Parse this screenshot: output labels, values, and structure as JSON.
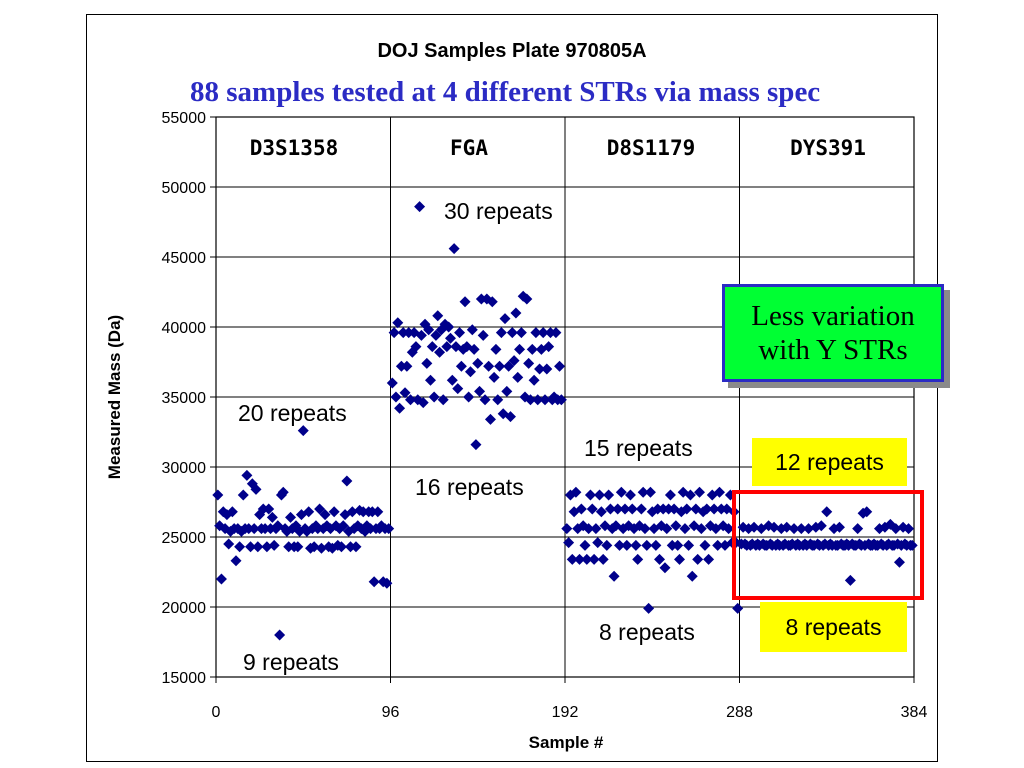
{
  "chart_data": {
    "type": "scatter",
    "title": "DOJ Samples Plate 970805A",
    "subtitle": "88 samples tested at 4 different STRs via mass spec",
    "xlabel": "Sample #",
    "ylabel": "Measured Mass (Da)",
    "xlim": [
      0,
      384
    ],
    "ylim": [
      15000,
      55000
    ],
    "x_ticks": [
      "0",
      "96",
      "192",
      "288",
      "384"
    ],
    "y_ticks": [
      "15000",
      "20000",
      "25000",
      "30000",
      "35000",
      "40000",
      "45000",
      "50000",
      "55000"
    ],
    "grid": true,
    "marker_color": "#00008b",
    "loci": [
      "D3S1358",
      "FGA",
      "D8S1179",
      "DYS391"
    ],
    "annotations": [
      "30 repeats",
      "20 repeats",
      "9 repeats",
      "16 repeats",
      "15 repeats",
      "8 repeats",
      "12 repeats",
      "8 repeats"
    ],
    "callout": "Less variation with Y STRs",
    "series": [
      {
        "locus": "D3S1358",
        "x": [
          1,
          2,
          3,
          4,
          5,
          6,
          7,
          8,
          9,
          10,
          11,
          12,
          13,
          14,
          15,
          16,
          17,
          18,
          19,
          20,
          21,
          22,
          23,
          24,
          25,
          26,
          27,
          28,
          29,
          30,
          31,
          32,
          33,
          34,
          35,
          36,
          37,
          38,
          39,
          40,
          41,
          42,
          43,
          44,
          45,
          46,
          47,
          48,
          49,
          50,
          51,
          52,
          53,
          54,
          55,
          56,
          57,
          58,
          59,
          60,
          61,
          62,
          63,
          64,
          65,
          66,
          67,
          68,
          69,
          70,
          71,
          72,
          73,
          74,
          75,
          76,
          77,
          78,
          79,
          80,
          81,
          82,
          83,
          84,
          85,
          86,
          87,
          88,
          89,
          90,
          91,
          92,
          93,
          94,
          95
        ],
        "y": [
          28000,
          25800,
          22000,
          26800,
          25600,
          26600,
          24500,
          25400,
          26800,
          25600,
          23300,
          25600,
          24300,
          25400,
          28000,
          25600,
          29400,
          25600,
          24300,
          28800,
          25600,
          28400,
          24300,
          26600,
          25600,
          27000,
          25600,
          24300,
          27000,
          25600,
          26400,
          24400,
          25600,
          25800,
          18000,
          28000,
          28200,
          25600,
          25400,
          24300,
          26400,
          25600,
          24300,
          25800,
          24300,
          25400,
          26600,
          32600,
          25600,
          25400,
          26800,
          24200,
          25600,
          24300,
          25800,
          25600,
          27000,
          24200,
          25600,
          26600,
          25800,
          24300,
          25600,
          24200,
          26800,
          25800,
          24400,
          25600,
          24300,
          25800,
          26600,
          29000,
          25400,
          24300,
          26800,
          25600,
          24300,
          25800,
          26900,
          25600,
          26800,
          25400,
          25800,
          26800,
          25600,
          26800,
          21800,
          25600,
          26800,
          25600,
          25800,
          21800,
          25600,
          21700,
          25600
        ]
      },
      {
        "locus": "FGA",
        "x": [
          97,
          98,
          99,
          100,
          101,
          102,
          103,
          104,
          105,
          106,
          107,
          108,
          109,
          110,
          111,
          112,
          113,
          114,
          115,
          116,
          117,
          118,
          119,
          120,
          121,
          122,
          123,
          124,
          125,
          126,
          127,
          128,
          129,
          130,
          131,
          132,
          133,
          134,
          135,
          136,
          137,
          138,
          139,
          140,
          141,
          142,
          143,
          144,
          145,
          146,
          147,
          148,
          149,
          150,
          151,
          152,
          153,
          154,
          155,
          156,
          157,
          158,
          159,
          160,
          161,
          162,
          163,
          164,
          165,
          166,
          167,
          168,
          169,
          170,
          171,
          172,
          173,
          174,
          175,
          176,
          177,
          178,
          179,
          180,
          181,
          182,
          183,
          184,
          185,
          186,
          187,
          188,
          189,
          190
        ],
        "y": [
          36000,
          39600,
          35000,
          40300,
          34200,
          37200,
          39600,
          35300,
          37200,
          39600,
          34800,
          38200,
          39600,
          38600,
          34800,
          48600,
          39400,
          34600,
          40200,
          37400,
          39800,
          36200,
          38600,
          35000,
          39400,
          40800,
          38200,
          39800,
          34800,
          40200,
          38600,
          40000,
          39200,
          36200,
          45600,
          38600,
          35600,
          39600,
          37200,
          38400,
          41800,
          38600,
          35000,
          36800,
          39800,
          38400,
          31600,
          37400,
          35400,
          42000,
          39400,
          34800,
          42000,
          37200,
          33400,
          41800,
          36400,
          38400,
          34800,
          37200,
          39600,
          33800,
          40600,
          35400,
          37200,
          33600,
          39600,
          37600,
          41000,
          36400,
          38400,
          39600,
          42200,
          35000,
          42000,
          37400,
          34800,
          38400,
          36200,
          39600,
          34800,
          37000,
          38400,
          39600,
          34800,
          37000,
          38600,
          39600,
          34800,
          35000,
          39600,
          34800,
          37200,
          34800
        ]
      },
      {
        "locus": "D8S1179",
        "x": [
          193,
          194,
          195,
          196,
          197,
          198,
          199,
          200,
          201,
          202,
          203,
          204,
          205,
          206,
          207,
          208,
          209,
          210,
          211,
          212,
          213,
          214,
          215,
          216,
          217,
          218,
          219,
          220,
          221,
          222,
          223,
          224,
          225,
          226,
          227,
          228,
          229,
          230,
          231,
          232,
          233,
          234,
          235,
          236,
          237,
          238,
          239,
          240,
          241,
          242,
          243,
          244,
          245,
          246,
          247,
          248,
          249,
          250,
          251,
          252,
          253,
          254,
          255,
          256,
          257,
          258,
          259,
          260,
          261,
          262,
          263,
          264,
          265,
          266,
          267,
          268,
          269,
          270,
          271,
          272,
          273,
          274,
          275,
          276,
          277,
          278,
          279,
          280,
          281,
          282,
          283,
          284,
          285,
          286,
          287
        ],
        "y": [
          25600,
          24600,
          28000,
          23400,
          26800,
          28200,
          25600,
          23400,
          27000,
          25800,
          24400,
          23400,
          25600,
          28000,
          27000,
          23400,
          25600,
          24600,
          28000,
          26800,
          23400,
          25800,
          24400,
          28000,
          27000,
          25600,
          22200,
          25800,
          27000,
          24400,
          28200,
          25600,
          27000,
          24400,
          25800,
          28000,
          27000,
          25600,
          24400,
          23400,
          25800,
          27000,
          28200,
          25600,
          24400,
          19900,
          28200,
          26800,
          25600,
          24400,
          27000,
          23400,
          25800,
          27000,
          22800,
          25600,
          27000,
          28000,
          24400,
          27000,
          25800,
          24400,
          23400,
          26800,
          28200,
          25600,
          27000,
          24400,
          28000,
          22200,
          25800,
          27000,
          23400,
          28200,
          25600,
          26800,
          24400,
          27000,
          23400,
          25800,
          28000,
          27000,
          25600,
          24400,
          28200,
          27000,
          25800,
          24400,
          27000,
          25600,
          28000,
          24600,
          26800,
          24600,
          19900
        ]
      },
      {
        "locus": "DYS391",
        "x": [
          289,
          290,
          291,
          292,
          293,
          294,
          295,
          296,
          297,
          298,
          299,
          300,
          301,
          302,
          303,
          304,
          305,
          306,
          307,
          308,
          309,
          310,
          311,
          312,
          313,
          314,
          315,
          316,
          317,
          318,
          319,
          320,
          321,
          322,
          323,
          324,
          325,
          326,
          327,
          328,
          329,
          330,
          331,
          332,
          333,
          334,
          335,
          336,
          337,
          338,
          339,
          340,
          341,
          342,
          343,
          344,
          345,
          346,
          347,
          348,
          349,
          350,
          351,
          352,
          353,
          354,
          355,
          356,
          357,
          358,
          359,
          360,
          361,
          362,
          363,
          364,
          365,
          366,
          367,
          368,
          369,
          370,
          371,
          372,
          373,
          374,
          375,
          376,
          377,
          378,
          379,
          380,
          381,
          382,
          383
        ],
        "y": [
          24500,
          25700,
          24500,
          24400,
          25600,
          24400,
          24500,
          25700,
          24400,
          24500,
          24400,
          25600,
          24500,
          24400,
          24400,
          25800,
          24500,
          24400,
          25700,
          24400,
          24500,
          24400,
          25600,
          24400,
          24500,
          25700,
          24400,
          24400,
          24500,
          25600,
          24400,
          24500,
          24400,
          25600,
          24400,
          24500,
          24400,
          25600,
          24500,
          24400,
          24400,
          25700,
          24500,
          24400,
          25800,
          24400,
          24500,
          26800,
          24400,
          24500,
          24400,
          25600,
          24400,
          24400,
          25700,
          24500,
          24400,
          24400,
          24500,
          24400,
          21900,
          24500,
          24400,
          24400,
          25600,
          24500,
          24400,
          26700,
          24400,
          26800,
          24500,
          24400,
          24400,
          24500,
          24400,
          24400,
          25600,
          24500,
          24400,
          25700,
          24400,
          24500,
          25900,
          24400,
          24400,
          25600,
          24500,
          23200,
          24400,
          25700,
          24500,
          24400,
          25600,
          24400,
          24400
        ]
      }
    ]
  }
}
